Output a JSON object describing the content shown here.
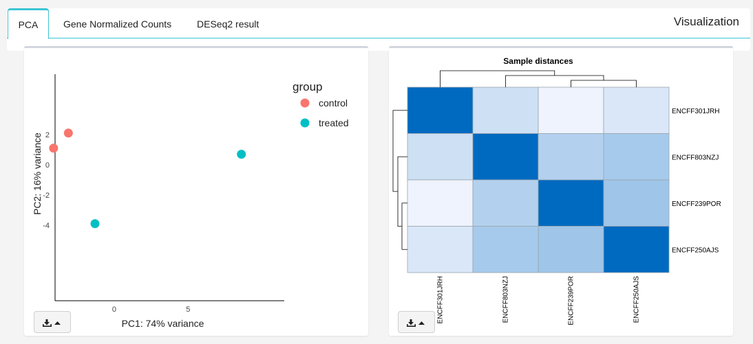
{
  "tabs": [
    {
      "label": "PCA",
      "active": true
    },
    {
      "label": "Gene Normalized Counts",
      "active": false
    },
    {
      "label": "DESeq2 result",
      "active": false
    }
  ],
  "section_title": "Visualization",
  "download_icon": "download-icon",
  "dropdown_icon": "caret-up-icon",
  "chart_data": [
    {
      "type": "scatter",
      "title": "",
      "xlabel": "PC1: 74% variance",
      "ylabel": "PC2: 16% variance",
      "xlim": [
        -4,
        11.5
      ],
      "ylim": [
        -9,
        6
      ],
      "xticks": [
        0,
        5
      ],
      "yticks": [
        -4,
        -2,
        0,
        2
      ],
      "legend_title": "group",
      "legend_position": "right",
      "series": [
        {
          "name": "control",
          "color": "#f8766d",
          "points": [
            [
              -4.1,
              1.1
            ],
            [
              -3.1,
              2.1
            ]
          ]
        },
        {
          "name": "treated",
          "color": "#00bfc4",
          "points": [
            [
              -1.3,
              -3.9
            ],
            [
              8.6,
              0.7
            ]
          ]
        }
      ]
    },
    {
      "type": "heatmap",
      "title": "Sample distances",
      "rows": [
        "ENCFF301JRH",
        "ENCFF803NZJ",
        "ENCFF239POR",
        "ENCFF250AJS"
      ],
      "columns": [
        "ENCFF301JRH",
        "ENCFF803NZJ",
        "ENCFF239POR",
        "ENCFF250AJS"
      ],
      "values": [
        [
          0.0,
          0.8,
          0.93,
          0.85
        ],
        [
          0.8,
          0.0,
          0.7,
          0.65
        ],
        [
          0.93,
          0.7,
          0.0,
          0.62
        ],
        [
          0.85,
          0.65,
          0.62,
          0.0
        ]
      ],
      "color_low": "#006ac0",
      "color_high": "#eef3fd",
      "dendrogram": "rows and columns"
    }
  ]
}
